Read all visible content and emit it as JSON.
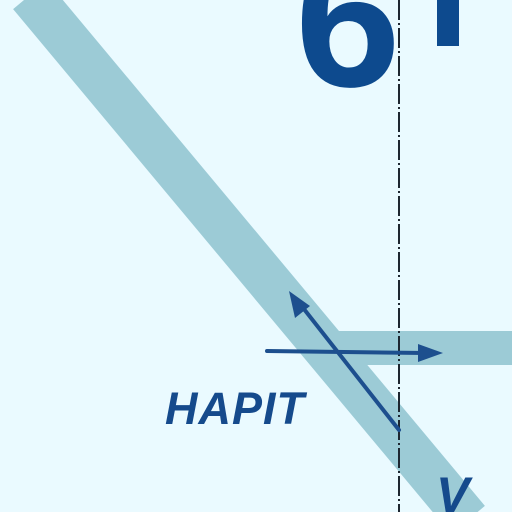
{
  "map": {
    "fix_name": "HAPIT",
    "large_number_fragment": "6",
    "large_number_fragment_2": "'",
    "edge_label_fragment": "V"
  },
  "colors": {
    "background": "#eafaff",
    "airway": "#9ccbd6",
    "label_blue": "#154a8c",
    "boundary_line": "#1d2630"
  }
}
